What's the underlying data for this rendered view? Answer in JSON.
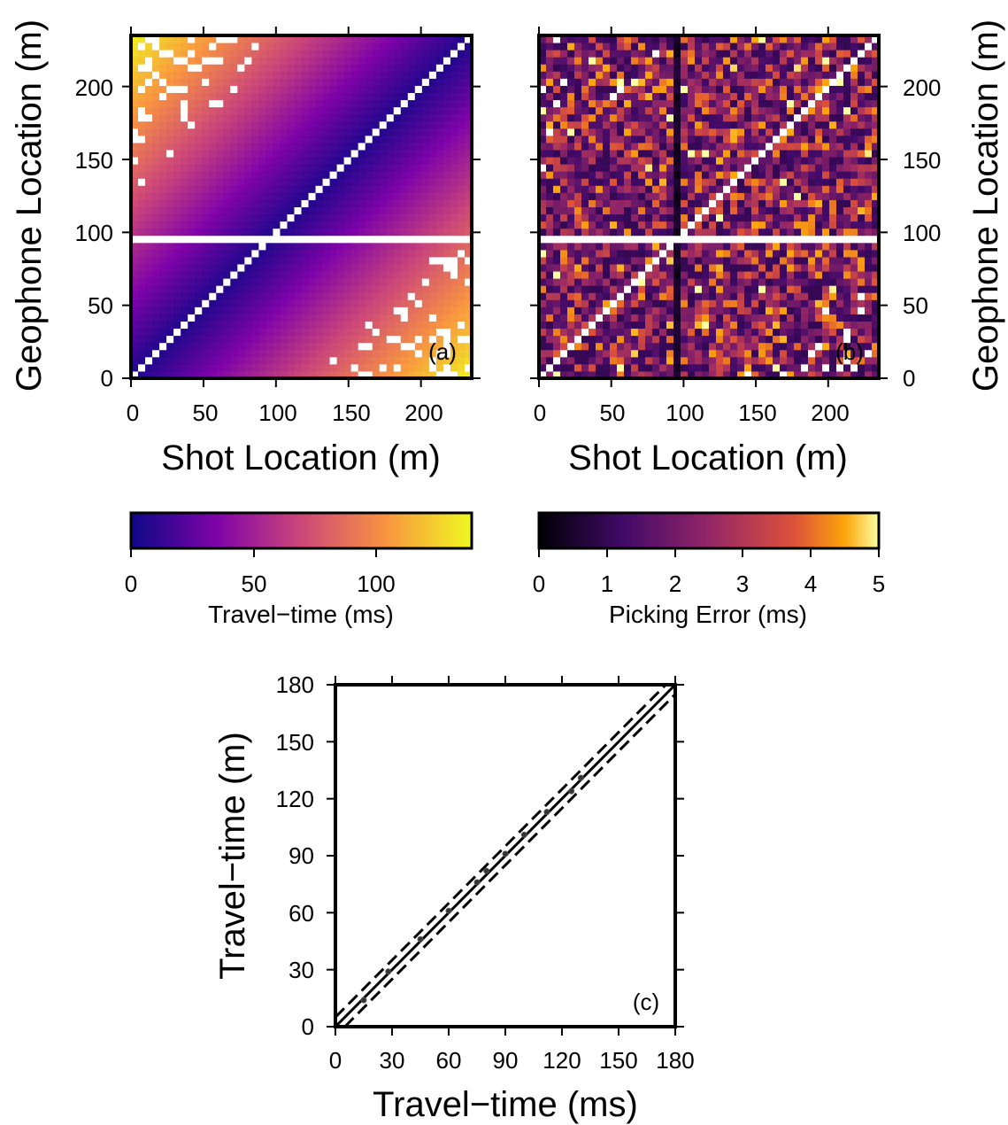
{
  "panel_a": {
    "tag": "(a)",
    "xlabel": "Shot Location (m)",
    "ylabel": "Geophone Location (m)",
    "xticks": [
      "0",
      "50",
      "100",
      "150",
      "200"
    ],
    "yticks": [
      "0",
      "50",
      "100",
      "150",
      "200"
    ]
  },
  "panel_b": {
    "tag": "(b)",
    "xlabel": "Shot Location (m)",
    "ylabel": "Geophone Location (m)",
    "xticks": [
      "0",
      "50",
      "100",
      "150",
      "200"
    ],
    "yticks": [
      "0",
      "50",
      "100",
      "150",
      "200"
    ]
  },
  "colorbar_a": {
    "label": "Travel−time (ms)",
    "ticks": [
      "0",
      "50",
      "100"
    ]
  },
  "colorbar_b": {
    "label": "Picking Error (ms)",
    "ticks": [
      "0",
      "1",
      "2",
      "3",
      "4",
      "5"
    ]
  },
  "panel_c": {
    "tag": "(c)",
    "xlabel": "Travel−time (ms)",
    "ylabel": "Travel−time (m)",
    "xticks": [
      "0",
      "30",
      "60",
      "90",
      "120",
      "150",
      "180"
    ],
    "yticks": [
      "0",
      "30",
      "60",
      "90",
      "120",
      "150",
      "180"
    ]
  },
  "chart_data": [
    {
      "type": "heatmap",
      "panel": "a",
      "quantity": "travel time (ms)",
      "x_range": [
        0,
        235
      ],
      "y_range": [
        0,
        235
      ],
      "cell_size_m": 5,
      "approx_model": "value ≈ 0.55 × |shot − geophone| + 5 (ms)",
      "color_range": [
        0,
        140
      ],
      "colormap": "plasma",
      "blank_row_at_geophone_m": 95,
      "blank_diagonal": true
    },
    {
      "type": "heatmap",
      "panel": "b",
      "quantity": "picking error (ms)",
      "x_range": [
        0,
        235
      ],
      "y_range": [
        0,
        235
      ],
      "cell_size_m": 5,
      "value_range": [
        0,
        5
      ],
      "colormap": "inferno",
      "blank_row_at_geophone_m": 95,
      "blank_diagonal": true,
      "low_error_column_at_shot_m": 95
    },
    {
      "type": "scatter",
      "panel": "c",
      "x_range": [
        0,
        180
      ],
      "y_range": [
        0,
        180
      ],
      "points": [
        [
          15,
          14
        ],
        [
          28,
          29
        ],
        [
          45,
          46
        ],
        [
          60,
          61
        ],
        [
          75,
          76
        ],
        [
          80,
          82
        ],
        [
          90,
          91
        ],
        [
          100,
          101
        ],
        [
          112,
          113
        ],
        [
          125,
          124
        ],
        [
          130,
          131
        ]
      ],
      "reference_lines": [
        {
          "style": "solid",
          "offset": 0
        },
        {
          "style": "dashed",
          "offset": 5
        },
        {
          "style": "dashed",
          "offset": -5
        }
      ]
    }
  ]
}
